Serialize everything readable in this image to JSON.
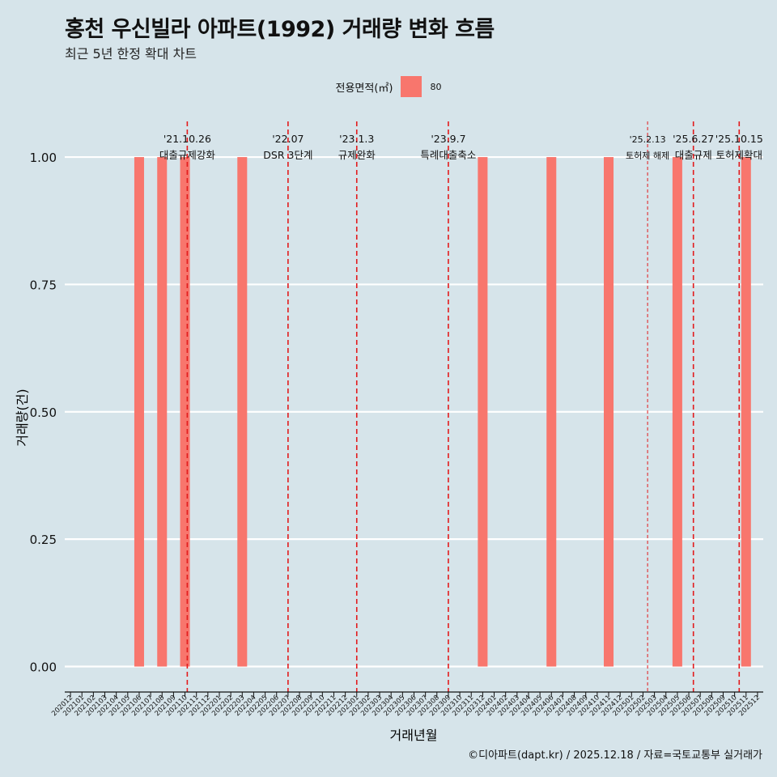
{
  "title": "홍천 우신빌라 아파트(1992) 거래량 변화 흐름",
  "subtitle": "최근 5년 한정 확대 차트",
  "legend": {
    "title": "전용면적(㎡)",
    "items": [
      {
        "label": "80",
        "color": "#f8766d"
      }
    ]
  },
  "caption": "©디아파트(dapt.kr) / 2025.12.18 / 자료=국토교통부 실거래가",
  "chart_data": {
    "type": "bar",
    "title": "홍천 우신빌라 아파트(1992) 거래량 변화 흐름",
    "xlabel": "거래년월",
    "ylabel": "거래량(건)",
    "ylim": [
      -0.05,
      1.07
    ],
    "yticks": [
      0,
      0.25,
      0.5,
      0.75,
      1.0
    ],
    "ytick_labels": [
      "0.00",
      "0.25",
      "0.50",
      "0.75",
      "1.00"
    ],
    "categories": [
      "202012",
      "202101",
      "202102",
      "202103",
      "202104",
      "202105",
      "202106",
      "202107",
      "202108",
      "202109",
      "202110",
      "202111",
      "202112",
      "202201",
      "202202",
      "202203",
      "202204",
      "202205",
      "202206",
      "202207",
      "202208",
      "202209",
      "202210",
      "202211",
      "202212",
      "202301",
      "202302",
      "202303",
      "202304",
      "202305",
      "202306",
      "202307",
      "202308",
      "202309",
      "202310",
      "202311",
      "202312",
      "202401",
      "202402",
      "202403",
      "202404",
      "202405",
      "202406",
      "202407",
      "202408",
      "202409",
      "202410",
      "202411",
      "202412",
      "202501",
      "202502",
      "202503",
      "202504",
      "202505",
      "202506",
      "202507",
      "202508",
      "202509",
      "202510",
      "202511",
      "202512"
    ],
    "series": [
      {
        "name": "80",
        "color": "#f8766d",
        "values": [
          0,
          0,
          0,
          0,
          0,
          0,
          1,
          0,
          1,
          0,
          1,
          0,
          0,
          0,
          0,
          1,
          0,
          0,
          0,
          0,
          0,
          0,
          0,
          0,
          0,
          0,
          0,
          0,
          0,
          0,
          0,
          0,
          0,
          0,
          0,
          0,
          1,
          0,
          0,
          0,
          0,
          0,
          1,
          0,
          0,
          0,
          0,
          1,
          0,
          0,
          0,
          0,
          0,
          1,
          0,
          0,
          0,
          0,
          0,
          1,
          0
        ]
      }
    ],
    "annotations": [
      {
        "date_label": "'21.10.26",
        "event": "대출규제강화",
        "x": 10.2,
        "style": "bold"
      },
      {
        "date_label": "'22.07",
        "event": "DSR 3단계",
        "x": 19.0,
        "style": "bold"
      },
      {
        "date_label": "'23.1.3",
        "event": "규제완화",
        "x": 25.0,
        "style": "bold"
      },
      {
        "date_label": "'23.9.7",
        "event": "특례대출축소",
        "x": 33.0,
        "style": "bold"
      },
      {
        "date_label": "'25.2.13",
        "event": "토허제 해제",
        "x": 50.4,
        "style": "thin"
      },
      {
        "date_label": "'25.6.27",
        "event": "대출규제",
        "x": 54.4,
        "style": "bold"
      },
      {
        "date_label": "'25.10.15",
        "event": "토허제확대",
        "x": 58.4,
        "style": "bold"
      }
    ]
  }
}
